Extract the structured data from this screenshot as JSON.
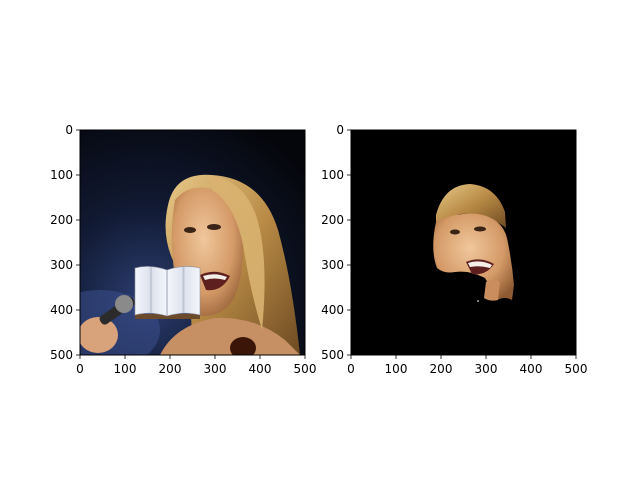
{
  "figure": {
    "panels": [
      {
        "name": "original-image",
        "image_extent": {
          "x": [
            0,
            500
          ],
          "y": [
            0,
            500
          ]
        },
        "xticks": [
          0,
          100,
          200,
          300,
          400,
          500
        ],
        "yticks": [
          0,
          100,
          200,
          300,
          400,
          500
        ],
        "occluder": "book-icon"
      },
      {
        "name": "masked-face-image",
        "image_extent": {
          "x": [
            0,
            500
          ],
          "y": [
            0,
            500
          ]
        },
        "xticks": [
          0,
          100,
          200,
          300,
          400,
          500
        ],
        "yticks": [
          0,
          100,
          200,
          300,
          400,
          500
        ],
        "background": "#000000"
      }
    ]
  }
}
